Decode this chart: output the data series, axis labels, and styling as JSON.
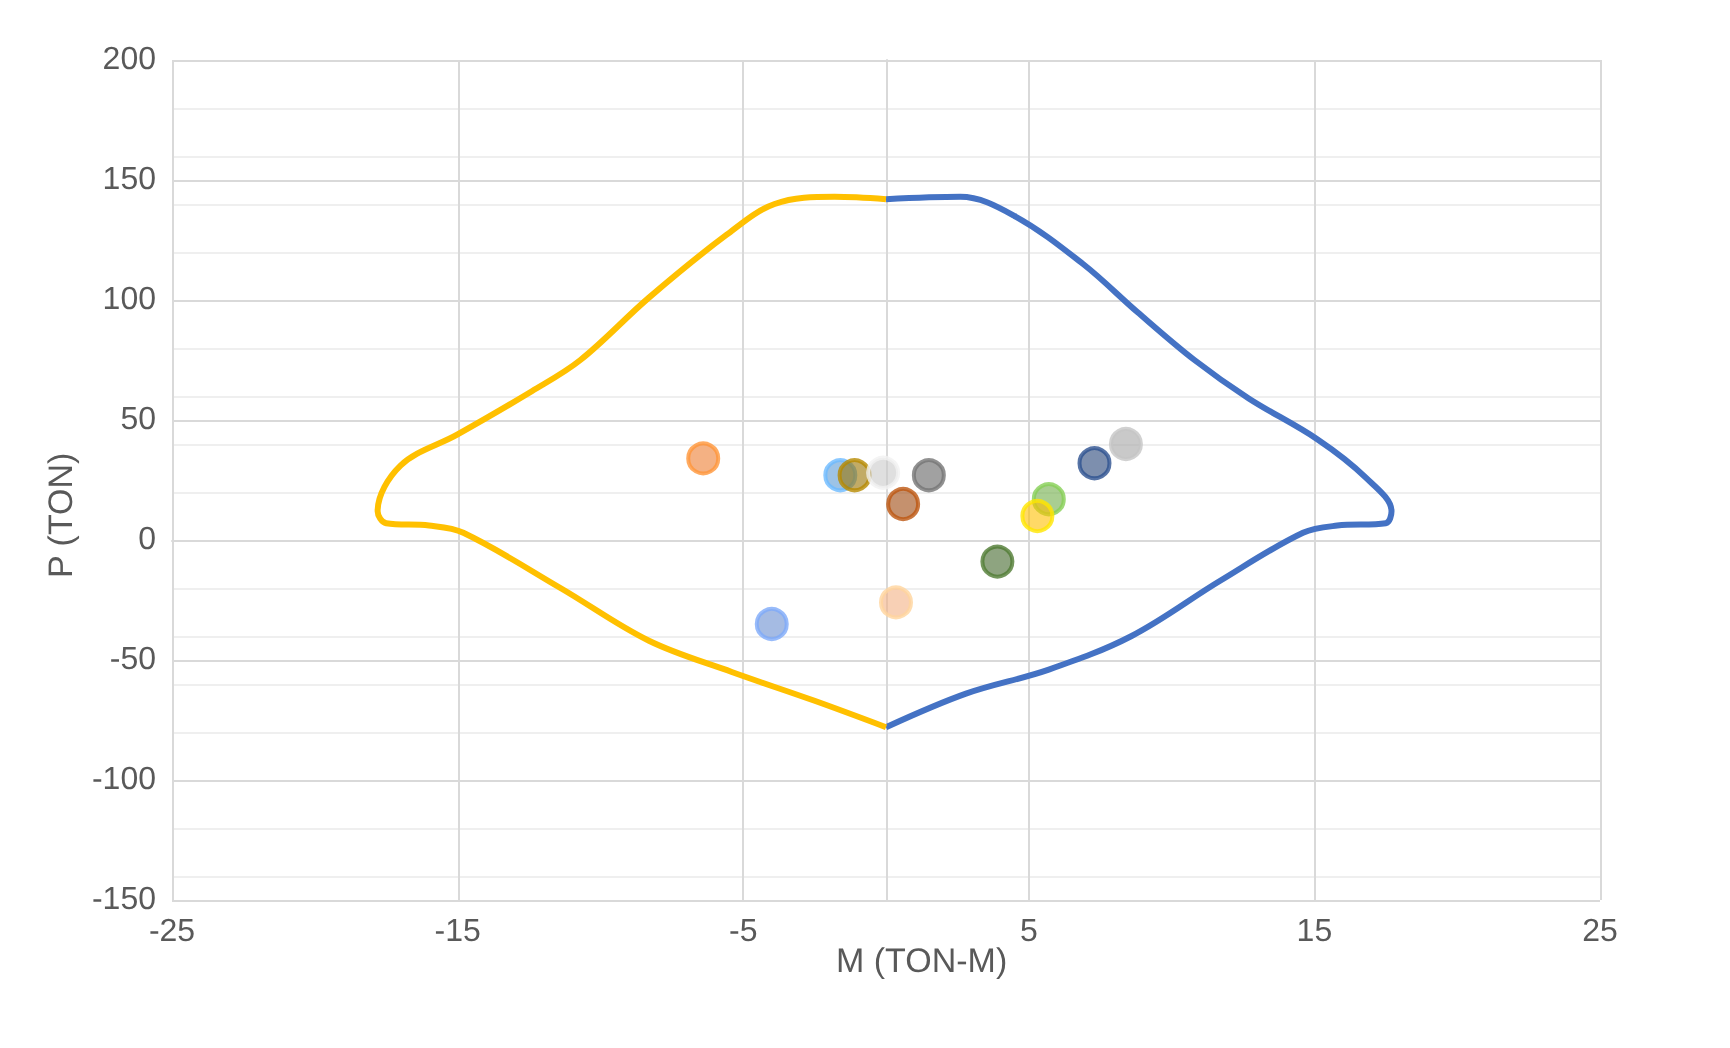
{
  "chart_data": {
    "type": "scatter",
    "xlabel": "M (TON-M)",
    "ylabel": "P (TON)",
    "xlim": [
      -25,
      25
    ],
    "xticks": [
      -25,
      -15,
      -5,
      5,
      15,
      25
    ],
    "ylim": [
      -150,
      200
    ],
    "yticks": [
      -150,
      -100,
      -50,
      0,
      50,
      100,
      150,
      200
    ],
    "grid": true,
    "series": [
      {
        "type": "line",
        "color": "#4472c4",
        "marker": "none",
        "x": [
          0,
          2.6,
          4.5,
          6.9,
          8.8,
          10.8,
          12.7,
          15.1,
          16.8,
          17.7,
          17.5,
          15.8,
          14.6,
          11.7,
          8.6,
          5.7,
          2.8,
          0
        ],
        "values": [
          142,
          143,
          135,
          115,
          95,
          75,
          59,
          42,
          26,
          12,
          7,
          6,
          3,
          -17,
          -40,
          -54,
          -64,
          -78
        ]
      },
      {
        "type": "line",
        "color": "#ffc000",
        "marker": "none",
        "x": [
          0,
          -1.8,
          -3.9,
          -5.6,
          -8.3,
          -10.7,
          -12.4,
          -15,
          -17,
          -17.8,
          -17.5,
          -16,
          -14.8,
          -11.4,
          -8.3,
          -5.4,
          -2.5,
          0
        ],
        "values": [
          142,
          143,
          140,
          127,
          101,
          75,
          62,
          44,
          31,
          12,
          7,
          6,
          3,
          -20,
          -42,
          -55,
          -67,
          -78
        ]
      },
      {
        "marker": "circle",
        "x": [
          -6.4,
          -1.6,
          -1.1,
          -0.1,
          1.5,
          0.6,
          0.35,
          -4,
          3.9,
          5.7,
          5.3,
          7.3,
          8.4
        ],
        "values": [
          34,
          27,
          27,
          28,
          27,
          15,
          -26,
          -35,
          -9,
          17,
          10,
          32,
          40
        ],
        "colors": [
          "#ed7d31",
          "#5b9bd5",
          "#997300",
          "#c9c9c9",
          "#636363",
          "#9e480e",
          "#f4b183",
          "#698ed0",
          "#43682b",
          "#70ad47",
          "#ffc000",
          "#264478",
          "#a5a5a5"
        ]
      }
    ]
  }
}
